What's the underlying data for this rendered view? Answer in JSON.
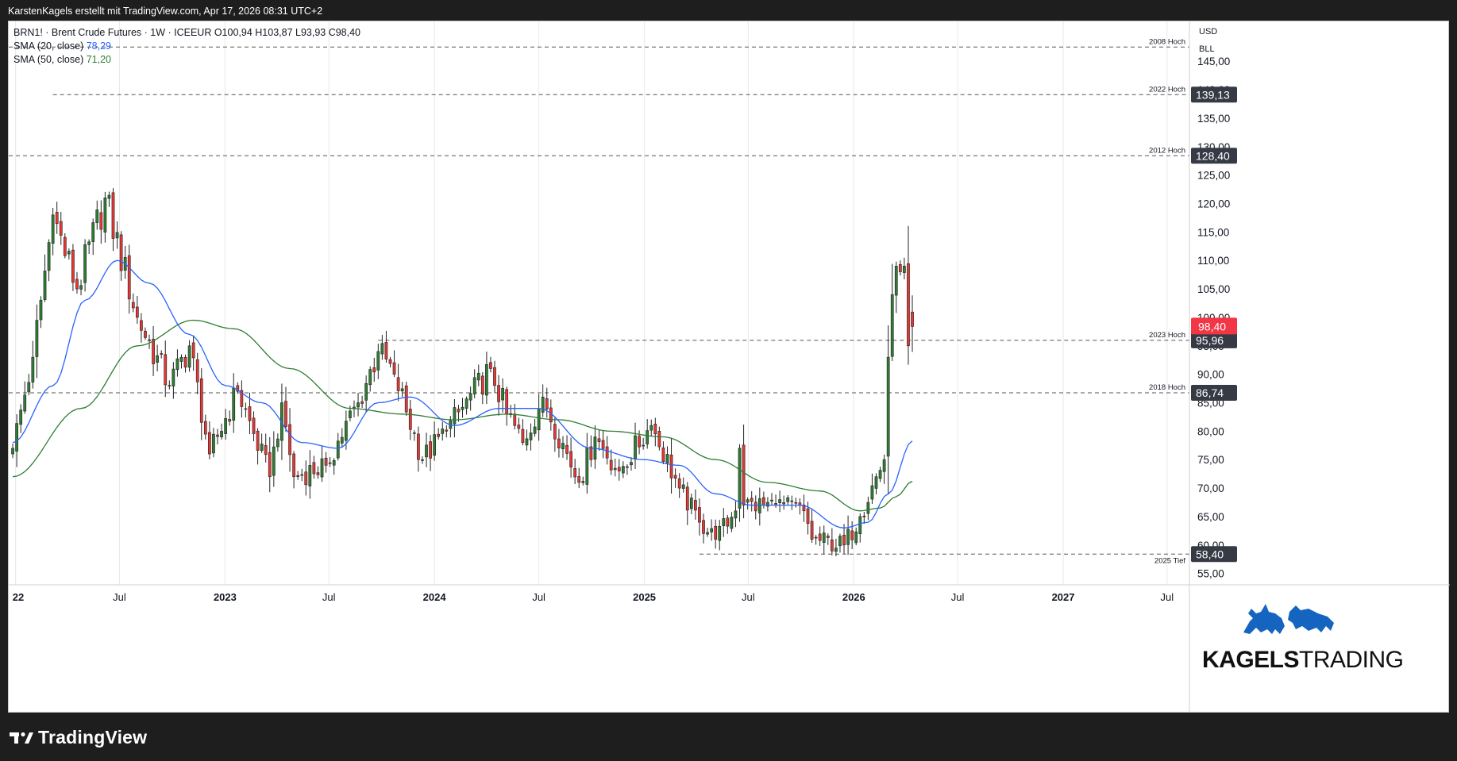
{
  "header": {
    "attribution": "KarstenKagels erstellt mit TradingView.com, Apr 17, 2026 08:31 UTC+2"
  },
  "legend": {
    "symbol_line": "BRN1! · Brent Crude Futures · 1W · ICEEUR  O100,94  H103,87  L93,93  C98,40",
    "sma20_label": "SMA (20, close)",
    "sma20_value": "78,29",
    "sma50_label": "SMA (50, close)",
    "sma50_value": "71,20"
  },
  "axis_header": {
    "currency": "USD",
    "unit": "BLL"
  },
  "branding": {
    "tradingview": "TradingView",
    "kagels_bold": "KAGELS",
    "kagels_regular": "TRADING"
  },
  "colors": {
    "up": "#2e7d32",
    "down": "#e53935",
    "wick": "#222222",
    "sma20": "#2962ff",
    "sma50": "#2e7d32",
    "price_tag": "#f23645",
    "level_tag": "#363a45"
  },
  "chart_data": {
    "type": "candlestick",
    "interval": "1W",
    "ylim": [
      53,
      152
    ],
    "y_ticks": [
      55,
      60,
      65,
      70,
      75,
      80,
      85,
      90,
      95,
      100,
      105,
      110,
      115,
      120,
      125,
      130,
      135,
      140,
      145
    ],
    "y_tick_labels": [
      "55,00",
      "60,00",
      "65,00",
      "70,00",
      "75,00",
      "80,00",
      "85,00",
      "90,00",
      "95,00",
      "100,00",
      "105,00",
      "110,00",
      "115,00",
      "120,00",
      "125,00",
      "130,00",
      "135,00",
      "140,00",
      "145,00"
    ],
    "x_range": [
      "2021-12-20",
      "2027-08-09"
    ],
    "x_ticks": [
      {
        "date": "2022-01-01",
        "label": "22",
        "bold": true
      },
      {
        "date": "2022-07-01",
        "label": "Jul",
        "bold": false
      },
      {
        "date": "2023-01-01",
        "label": "2023",
        "bold": true
      },
      {
        "date": "2023-07-01",
        "label": "Jul",
        "bold": false
      },
      {
        "date": "2024-01-01",
        "label": "2024",
        "bold": true
      },
      {
        "date": "2024-07-01",
        "label": "Jul",
        "bold": false
      },
      {
        "date": "2025-01-01",
        "label": "2025",
        "bold": true
      },
      {
        "date": "2025-07-01",
        "label": "Jul",
        "bold": false
      },
      {
        "date": "2026-01-01",
        "label": "2026",
        "bold": true
      },
      {
        "date": "2026-07-01",
        "label": "Jul",
        "bold": false
      },
      {
        "date": "2027-01-01",
        "label": "2027",
        "bold": true
      },
      {
        "date": "2027-07-01",
        "label": "Jul",
        "bold": false
      }
    ],
    "grid": true,
    "ohlc": {
      "last": {
        "open": 100.94,
        "high": 103.87,
        "low": 93.93,
        "close": 98.4
      }
    },
    "price_anchors": [
      {
        "date": "2021-12-27",
        "close": 77
      },
      {
        "date": "2022-01-31",
        "close": 93
      },
      {
        "date": "2022-03-07",
        "close": 118
      },
      {
        "date": "2022-04-18",
        "close": 105
      },
      {
        "date": "2022-06-06",
        "close": 121
      },
      {
        "date": "2022-08-01",
        "close": 100
      },
      {
        "date": "2022-09-26",
        "close": 88
      },
      {
        "date": "2022-10-31",
        "close": 95
      },
      {
        "date": "2022-12-05",
        "close": 76
      },
      {
        "date": "2023-01-23",
        "close": 87
      },
      {
        "date": "2023-03-20",
        "close": 72
      },
      {
        "date": "2023-04-10",
        "close": 85
      },
      {
        "date": "2023-05-01",
        "close": 72
      },
      {
        "date": "2023-06-26",
        "close": 74
      },
      {
        "date": "2023-08-21",
        "close": 85
      },
      {
        "date": "2023-09-25",
        "close": 94
      },
      {
        "date": "2023-10-23",
        "close": 90
      },
      {
        "date": "2023-12-11",
        "close": 75
      },
      {
        "date": "2024-01-22",
        "close": 80
      },
      {
        "date": "2024-04-08",
        "close": 91
      },
      {
        "date": "2024-05-06",
        "close": 83
      },
      {
        "date": "2024-06-03",
        "close": 78
      },
      {
        "date": "2024-07-08",
        "close": 86
      },
      {
        "date": "2024-09-09",
        "close": 71
      },
      {
        "date": "2024-10-07",
        "close": 79
      },
      {
        "date": "2024-11-18",
        "close": 73
      },
      {
        "date": "2025-01-13",
        "close": 81
      },
      {
        "date": "2025-03-03",
        "close": 70
      },
      {
        "date": "2025-04-07",
        "close": 64
      },
      {
        "date": "2025-05-05",
        "close": 61
      },
      {
        "date": "2025-06-09",
        "close": 66
      },
      {
        "date": "2025-06-16",
        "close": 77
      },
      {
        "date": "2025-06-23",
        "close": 67
      },
      {
        "date": "2025-08-18",
        "close": 67
      },
      {
        "date": "2025-10-06",
        "close": 66
      },
      {
        "date": "2025-10-20",
        "close": 61
      },
      {
        "date": "2025-12-15",
        "close": 60
      },
      {
        "date": "2026-01-12",
        "close": 65
      },
      {
        "date": "2026-02-09",
        "close": 72
      },
      {
        "date": "2026-02-23",
        "close": 75
      },
      {
        "date": "2026-03-02",
        "close": 93
      },
      {
        "date": "2026-03-09",
        "close": 104
      },
      {
        "date": "2026-03-16",
        "close": 109
      },
      {
        "date": "2026-03-23",
        "close": 108
      },
      {
        "date": "2026-03-30",
        "close": 109
      },
      {
        "date": "2026-04-06",
        "close": 95
      },
      {
        "date": "2026-04-13",
        "close": 98.4
      }
    ],
    "sma20_anchors": [
      {
        "date": "2021-12-27",
        "value": 78
      },
      {
        "date": "2022-03-07",
        "value": 88
      },
      {
        "date": "2022-05-02",
        "value": 103
      },
      {
        "date": "2022-06-27",
        "value": 110
      },
      {
        "date": "2022-08-22",
        "value": 106
      },
      {
        "date": "2022-10-31",
        "value": 97
      },
      {
        "date": "2023-01-02",
        "value": 88
      },
      {
        "date": "2023-03-06",
        "value": 85
      },
      {
        "date": "2023-05-15",
        "value": 78
      },
      {
        "date": "2023-07-17",
        "value": 77
      },
      {
        "date": "2023-09-25",
        "value": 85
      },
      {
        "date": "2023-11-20",
        "value": 86
      },
      {
        "date": "2024-02-05",
        "value": 81
      },
      {
        "date": "2024-04-22",
        "value": 84
      },
      {
        "date": "2024-07-01",
        "value": 84
      },
      {
        "date": "2024-09-30",
        "value": 77
      },
      {
        "date": "2024-12-30",
        "value": 75
      },
      {
        "date": "2025-03-03",
        "value": 74
      },
      {
        "date": "2025-05-05",
        "value": 69
      },
      {
        "date": "2025-07-07",
        "value": 67
      },
      {
        "date": "2025-09-29",
        "value": 67
      },
      {
        "date": "2025-12-15",
        "value": 63
      },
      {
        "date": "2026-01-26",
        "value": 64
      },
      {
        "date": "2026-03-02",
        "value": 69
      },
      {
        "date": "2026-04-13",
        "value": 78.29
      }
    ],
    "sma50_anchors": [
      {
        "date": "2021-12-27",
        "value": 72
      },
      {
        "date": "2022-04-25",
        "value": 84
      },
      {
        "date": "2022-08-01",
        "value": 95
      },
      {
        "date": "2022-11-07",
        "value": 99.5
      },
      {
        "date": "2023-01-16",
        "value": 98
      },
      {
        "date": "2023-04-24",
        "value": 91
      },
      {
        "date": "2023-08-07",
        "value": 84
      },
      {
        "date": "2023-11-06",
        "value": 83
      },
      {
        "date": "2024-02-05",
        "value": 82
      },
      {
        "date": "2024-05-06",
        "value": 83
      },
      {
        "date": "2024-08-05",
        "value": 82
      },
      {
        "date": "2024-11-04",
        "value": 80
      },
      {
        "date": "2025-02-03",
        "value": 79
      },
      {
        "date": "2025-05-05",
        "value": 75
      },
      {
        "date": "2025-08-04",
        "value": 71
      },
      {
        "date": "2025-11-03",
        "value": 69.5
      },
      {
        "date": "2026-01-12",
        "value": 66
      },
      {
        "date": "2026-02-16",
        "value": 66.5
      },
      {
        "date": "2026-03-16",
        "value": 68.5
      },
      {
        "date": "2026-04-13",
        "value": 71.2
      }
    ],
    "levels": [
      {
        "label": "2008 Hoch",
        "value": 147.5,
        "tag": "",
        "start": "2021-12-20"
      },
      {
        "label": "2022 Hoch",
        "value": 139.13,
        "tag": "139,13",
        "start": "2022-03-07"
      },
      {
        "label": "2012 Hoch",
        "value": 128.4,
        "tag": "128,40",
        "start": "2021-12-20"
      },
      {
        "label": "2023 Hoch",
        "value": 95.96,
        "tag": "95,96",
        "start": "2023-09-25"
      },
      {
        "label": "2018 Hoch",
        "value": 86.74,
        "tag": "86,74",
        "start": "2021-12-20"
      },
      {
        "label": "2025 Tief",
        "value": 58.4,
        "tag": "58,40",
        "start": "2025-04-07"
      }
    ],
    "last_price_tag": "98,40",
    "last_price": 98.4
  }
}
